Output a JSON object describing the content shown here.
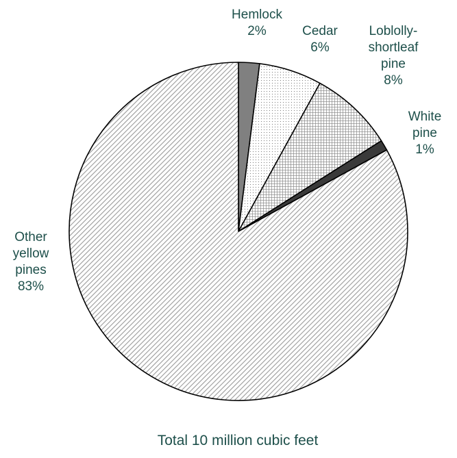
{
  "chart_data": {
    "type": "pie",
    "title": "",
    "caption": "Total 10 million cubic feet",
    "slices": [
      {
        "label_lines": [
          "Hemlock"
        ],
        "value_label": "2%",
        "value": 2,
        "pattern": "solid-gray",
        "color": "#808080"
      },
      {
        "label_lines": [
          "Cedar"
        ],
        "value_label": "6%",
        "value": 6,
        "pattern": "dots",
        "color": "#ffffff"
      },
      {
        "label_lines": [
          "Loblolly-",
          "shortleaf",
          "pine"
        ],
        "value_label": "8%",
        "value": 8,
        "pattern": "crosshatch",
        "color": "#c8c8c8"
      },
      {
        "label_lines": [
          "White",
          "pine"
        ],
        "value_label": "1%",
        "value": 1,
        "pattern": "solid-dark",
        "color": "#3a3a3a"
      },
      {
        "label_lines": [
          "Other",
          "yellow",
          "pines"
        ],
        "value_label": "83%",
        "value": 83,
        "pattern": "diagonal",
        "color": "#d8d8d8"
      }
    ]
  }
}
